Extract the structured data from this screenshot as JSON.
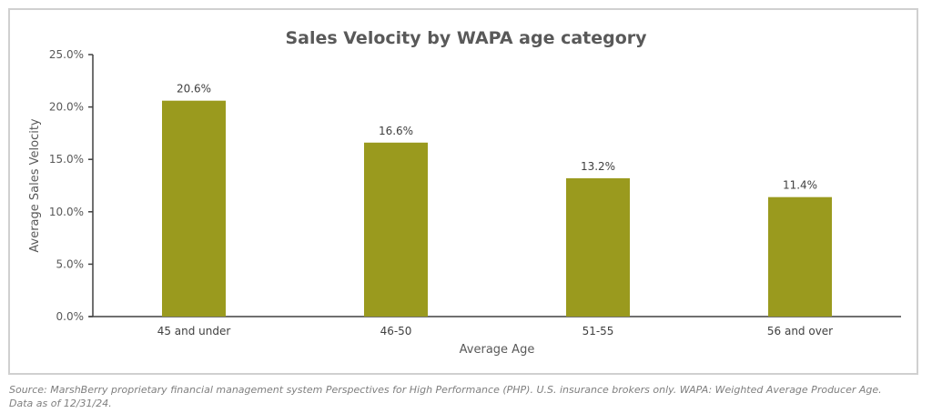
{
  "chart_data": {
    "type": "bar",
    "title": "Sales Velocity by WAPA age category",
    "xlabel": "Average Age",
    "ylabel": "Average Sales Velocity",
    "categories": [
      "45 and under",
      "46-50",
      "51-55",
      "56 and over"
    ],
    "values": [
      20.6,
      16.6,
      13.2,
      11.4
    ],
    "data_labels": [
      "20.6%",
      "16.6%",
      "13.2%",
      "11.4%"
    ],
    "ylim": [
      0,
      25
    ],
    "yticks": [
      0,
      5,
      10,
      15,
      20,
      25
    ],
    "ytick_labels": [
      "0.0%",
      "5.0%",
      "10.0%",
      "15.0%",
      "20.0%",
      "25.0%"
    ],
    "grid": false,
    "bar_color": "#9a9a1e"
  },
  "source_line1": "Source: MarshBerry proprietary financial management system Perspectives for High Performance (PHP). U.S. insurance brokers only. WAPA: Weighted Average Producer Age.",
  "source_line2": "Data as of 12/31/24."
}
